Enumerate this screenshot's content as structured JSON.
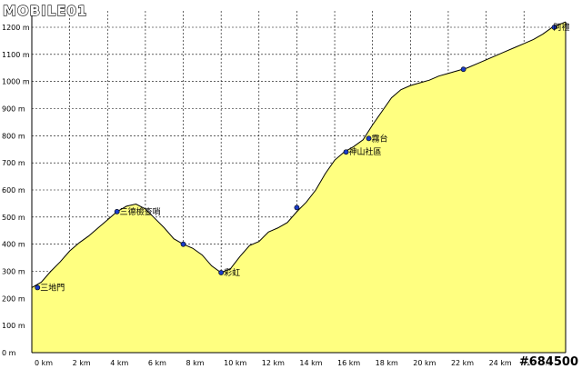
{
  "brand": {
    "logo_text": "MOBILE01"
  },
  "watermark": "#684500",
  "chart_data": {
    "type": "area",
    "title": "",
    "xlabel": "",
    "ylabel": "",
    "xlim": [
      0,
      28.2
    ],
    "ylim": [
      0,
      1200
    ],
    "grid": true,
    "fill_color": "#ffff80",
    "line_color": "#000000",
    "marker_color": "#1a3cc8",
    "x_ticks": [
      {
        "value": 0,
        "label": "0 km"
      },
      {
        "value": 2,
        "label": "2 km"
      },
      {
        "value": 4,
        "label": "4 km"
      },
      {
        "value": 6,
        "label": "6 km"
      },
      {
        "value": 8,
        "label": "8 km"
      },
      {
        "value": 10,
        "label": "10 km"
      },
      {
        "value": 12,
        "label": "12 km"
      },
      {
        "value": 14,
        "label": "14 km"
      },
      {
        "value": 16,
        "label": "16 km"
      },
      {
        "value": 18,
        "label": "18 km"
      },
      {
        "value": 20,
        "label": "20 km"
      },
      {
        "value": 22,
        "label": "22 km"
      },
      {
        "value": 24,
        "label": "24 km"
      },
      {
        "value": 26,
        "label": "26 km"
      }
    ],
    "y_ticks": [
      {
        "value": 0,
        "label": "0 m"
      },
      {
        "value": 100,
        "label": "100 m"
      },
      {
        "value": 200,
        "label": "200 m"
      },
      {
        "value": 300,
        "label": "300 m"
      },
      {
        "value": 400,
        "label": "400 m"
      },
      {
        "value": 500,
        "label": "500 m"
      },
      {
        "value": 600,
        "label": "600 m"
      },
      {
        "value": 700,
        "label": "700 m"
      },
      {
        "value": 800,
        "label": "800 m"
      },
      {
        "value": 900,
        "label": "900 m"
      },
      {
        "value": 1000,
        "label": "1000 m"
      },
      {
        "value": 1100,
        "label": "1100 m"
      },
      {
        "value": 1200,
        "label": "1200 m"
      }
    ],
    "profile": [
      [
        0,
        240
      ],
      [
        0.5,
        260
      ],
      [
        1,
        300
      ],
      [
        1.5,
        335
      ],
      [
        2,
        375
      ],
      [
        2.5,
        405
      ],
      [
        3,
        430
      ],
      [
        3.5,
        460
      ],
      [
        4,
        490
      ],
      [
        4.5,
        520
      ],
      [
        5,
        540
      ],
      [
        5.5,
        548
      ],
      [
        6,
        530
      ],
      [
        6.5,
        495
      ],
      [
        7,
        460
      ],
      [
        7.5,
        420
      ],
      [
        8,
        400
      ],
      [
        8.5,
        385
      ],
      [
        9,
        360
      ],
      [
        9.5,
        320
      ],
      [
        10,
        295
      ],
      [
        10.5,
        310
      ],
      [
        11,
        355
      ],
      [
        11.5,
        395
      ],
      [
        12,
        410
      ],
      [
        12.5,
        445
      ],
      [
        13,
        460
      ],
      [
        13.5,
        480
      ],
      [
        14,
        520
      ],
      [
        14.5,
        555
      ],
      [
        15,
        600
      ],
      [
        15.5,
        660
      ],
      [
        16,
        710
      ],
      [
        16.5,
        740
      ],
      [
        17,
        760
      ],
      [
        17.5,
        785
      ],
      [
        18,
        840
      ],
      [
        18.5,
        890
      ],
      [
        19,
        940
      ],
      [
        19.5,
        970
      ],
      [
        20,
        985
      ],
      [
        20.5,
        995
      ],
      [
        21,
        1005
      ],
      [
        21.5,
        1020
      ],
      [
        22,
        1030
      ],
      [
        22.5,
        1040
      ],
      [
        23,
        1050
      ],
      [
        23.5,
        1065
      ],
      [
        24,
        1080
      ],
      [
        24.5,
        1095
      ],
      [
        25,
        1110
      ],
      [
        25.5,
        1125
      ],
      [
        26,
        1140
      ],
      [
        26.5,
        1155
      ],
      [
        27,
        1175
      ],
      [
        27.5,
        1200
      ],
      [
        28.2,
        1220
      ]
    ],
    "waypoints": [
      {
        "x": 0.3,
        "y": 240,
        "label": "三地門"
      },
      {
        "x": 4.5,
        "y": 520,
        "label": "三德檢查哨"
      },
      {
        "x": 8.0,
        "y": 400,
        "label": ""
      },
      {
        "x": 10.0,
        "y": 295,
        "label": "彩虹"
      },
      {
        "x": 14.0,
        "y": 535,
        "label": ""
      },
      {
        "x": 16.6,
        "y": 740,
        "label": "神山社區"
      },
      {
        "x": 17.8,
        "y": 790,
        "label": "霧台"
      },
      {
        "x": 22.8,
        "y": 1045,
        "label": ""
      },
      {
        "x": 27.6,
        "y": 1200,
        "label": "阿禮"
      }
    ]
  }
}
